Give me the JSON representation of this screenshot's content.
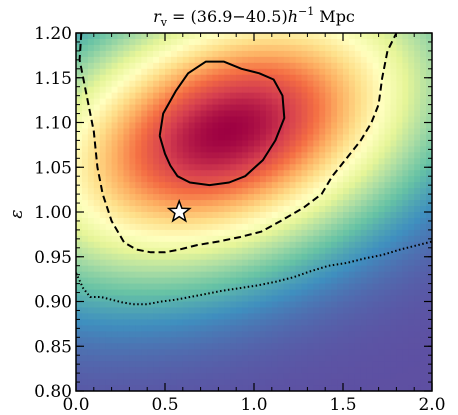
{
  "chart_data": {
    "type": "heatmap",
    "title": "r_v = (36.9−40.5) h⁻¹ Mpc",
    "title_parts": {
      "main": "r",
      "sub": "v",
      "rest": " = (36.9−40.5)",
      "h": "h",
      "sup": "−1",
      "unit": " Mpc"
    },
    "xlabel": "",
    "ylabel": "ε",
    "xlim": [
      0.0,
      2.0
    ],
    "ylim": [
      0.8,
      1.2
    ],
    "x_ticks": [
      "0.0",
      "0.5",
      "1.0",
      "1.5",
      "2.0"
    ],
    "y_ticks": [
      "0.80",
      "0.85",
      "0.90",
      "0.95",
      "1.00",
      "1.05",
      "1.10",
      "1.15",
      "1.20"
    ],
    "colormap": "Spectral_r",
    "colormap_stops": [
      "#5e4fa2",
      "#3f8fbf",
      "#66c2a5",
      "#abdda4",
      "#e6f598",
      "#ffffbf",
      "#fee08b",
      "#fdae61",
      "#f46d43",
      "#d53e4f",
      "#9e0142"
    ],
    "peak": {
      "x": 0.85,
      "y": 1.09
    },
    "density_model": {
      "center_x": 0.85,
      "center_y": 1.09,
      "sigma_x": 0.55,
      "sigma_y": 0.075,
      "correlation": 0.35
    },
    "marker": {
      "type": "star",
      "x": 0.58,
      "y": 1.0
    },
    "contours": [
      {
        "style": "solid",
        "points": [
          [
            0.47,
            1.085
          ],
          [
            0.49,
            1.11
          ],
          [
            0.56,
            1.135
          ],
          [
            0.63,
            1.155
          ],
          [
            0.73,
            1.168
          ],
          [
            0.83,
            1.168
          ],
          [
            0.93,
            1.16
          ],
          [
            1.03,
            1.155
          ],
          [
            1.11,
            1.148
          ],
          [
            1.16,
            1.13
          ],
          [
            1.17,
            1.105
          ],
          [
            1.12,
            1.08
          ],
          [
            1.05,
            1.058
          ],
          [
            0.95,
            1.04
          ],
          [
            0.86,
            1.033
          ],
          [
            0.75,
            1.03
          ],
          [
            0.64,
            1.033
          ],
          [
            0.57,
            1.04
          ],
          [
            0.53,
            1.052
          ],
          [
            0.5,
            1.065
          ],
          [
            0.47,
            1.085
          ]
        ]
      },
      {
        "style": "dashed",
        "points": [
          [
            0.03,
            1.2
          ],
          [
            0.02,
            1.17
          ],
          [
            0.06,
            1.13
          ],
          [
            0.1,
            1.09
          ],
          [
            0.12,
            1.05
          ],
          [
            0.15,
            1.02
          ],
          [
            0.2,
            0.99
          ],
          [
            0.27,
            0.966
          ],
          [
            0.34,
            0.958
          ],
          [
            0.42,
            0.955
          ],
          [
            0.5,
            0.955
          ],
          [
            0.58,
            0.958
          ],
          [
            0.68,
            0.963
          ],
          [
            0.8,
            0.967
          ],
          [
            0.92,
            0.972
          ],
          [
            1.04,
            0.978
          ],
          [
            1.15,
            0.99
          ],
          [
            1.28,
            1.005
          ],
          [
            1.38,
            1.02
          ],
          [
            1.44,
            1.04
          ],
          [
            1.52,
            1.06
          ],
          [
            1.6,
            1.08
          ],
          [
            1.66,
            1.1
          ],
          [
            1.7,
            1.12
          ],
          [
            1.72,
            1.15
          ],
          [
            1.75,
            1.18
          ],
          [
            1.8,
            1.2
          ]
        ]
      },
      {
        "style": "dotted",
        "points": [
          [
            0.0,
            0.932
          ],
          [
            0.04,
            0.915
          ],
          [
            0.08,
            0.905
          ],
          [
            0.14,
            0.905
          ],
          [
            0.2,
            0.902
          ],
          [
            0.26,
            0.899
          ],
          [
            0.32,
            0.897
          ],
          [
            0.4,
            0.897
          ],
          [
            0.48,
            0.9
          ],
          [
            0.56,
            0.902
          ],
          [
            0.64,
            0.905
          ],
          [
            0.72,
            0.908
          ],
          [
            0.82,
            0.912
          ],
          [
            0.92,
            0.915
          ],
          [
            1.02,
            0.918
          ],
          [
            1.12,
            0.922
          ],
          [
            1.22,
            0.927
          ],
          [
            1.32,
            0.934
          ],
          [
            1.42,
            0.94
          ],
          [
            1.52,
            0.943
          ],
          [
            1.62,
            0.948
          ],
          [
            1.72,
            0.952
          ],
          [
            1.82,
            0.958
          ],
          [
            1.92,
            0.963
          ],
          [
            2.0,
            0.967
          ]
        ]
      }
    ]
  }
}
